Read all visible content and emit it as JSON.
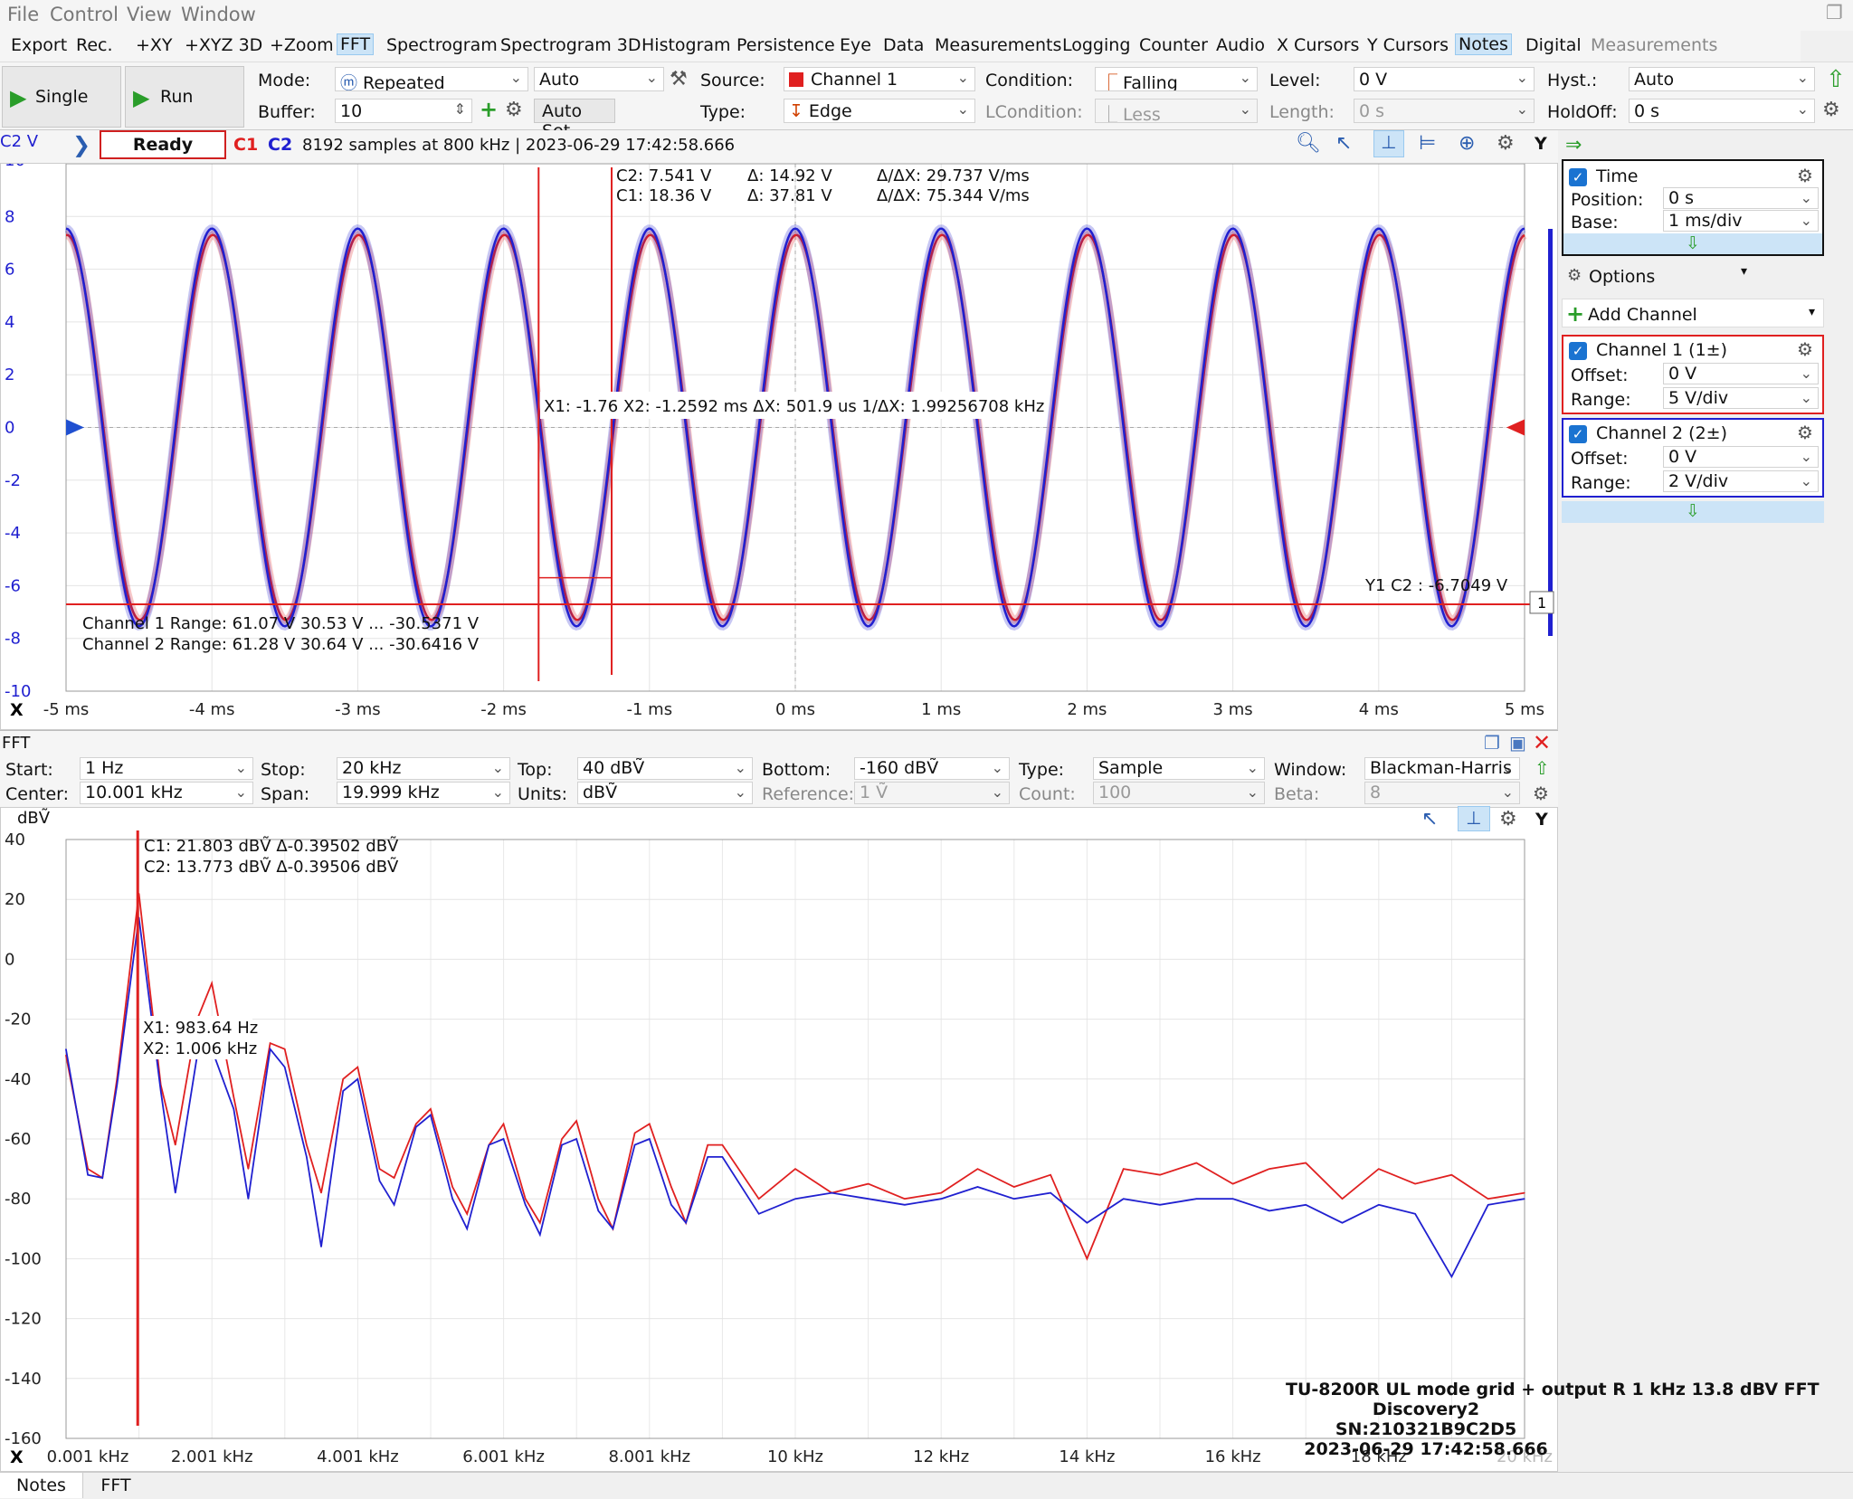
{
  "menu": [
    "File",
    "Control",
    "View",
    "Window"
  ],
  "toolbar": [
    "Export",
    "Rec.",
    "+XY",
    "+XYZ 3D",
    "+Zoom",
    "FFT",
    "Spectrogram",
    "Spectrogram 3D",
    "Histogram",
    "Persistence",
    "Eye",
    "Data",
    "Measurements",
    "Logging",
    "Counter",
    "Audio",
    "X Cursors",
    "Y Cursors",
    "Notes",
    "Digital",
    "Measurements"
  ],
  "controls": {
    "single": "Single",
    "run": "Run",
    "mode_label": "Mode:",
    "mode": "Repeated",
    "auto": "Auto",
    "buffer_label": "Buffer:",
    "buffer": "10",
    "autoset": "Auto Set",
    "source_label": "Source:",
    "source": "Channel 1",
    "type_label": "Type:",
    "type": "Edge",
    "condition_label": "Condition:",
    "condition": "Falling",
    "lcondition_label": "LCondition:",
    "lcondition": "Less",
    "level_label": "Level:",
    "level": "0 V",
    "length_label": "Length:",
    "length": "0 s",
    "hyst_label": "Hyst.:",
    "hyst": "Auto",
    "holdoff_label": "HoldOff:",
    "holdoff": "0 s"
  },
  "status": {
    "unit": "C2 V",
    "state": "Ready",
    "c1": "C1",
    "c2": "C2",
    "info": "8192 samples at 800 kHz | 2023-06-29 17:42:58.666",
    "y": "Y"
  },
  "scope": {
    "yticks": [
      "10",
      "8",
      "6",
      "4",
      "2",
      "0",
      "-2",
      "-4",
      "-6",
      "-8",
      "-10"
    ],
    "xticks": [
      "-5 ms",
      "-4 ms",
      "-3 ms",
      "-2 ms",
      "-1 ms",
      "0 ms",
      "1 ms",
      "2 ms",
      "3 ms",
      "4 ms",
      "5 ms"
    ],
    "x_axis_label": "X",
    "cursor_c2": "C2: 7.541 V",
    "cursor_c1": "C1: 18.36 V",
    "delta_c2": "Δ: 14.92 V",
    "delta_c1": "Δ: 37.81 V",
    "slope_c2": "Δ/ΔX: 29.737 V/ms",
    "slope_c1": "Δ/ΔX: 75.344 V/ms",
    "xcursors": "X1: -1.76 X2: -1.2592 ms   ΔX: 501.9 us     1/ΔX: 1.99256708 kHz",
    "ycursor": "Y1 C2 : -6.7049 V",
    "ch1_range": "Channel 1   Range: 61.07 V   30.53 V ... -30.5371 V",
    "ch2_range": "Channel 2   Range: 61.28 V   30.64 V ... -30.6416 V",
    "marker": "1"
  },
  "right_panel": {
    "time": "Time",
    "position_label": "Position:",
    "position": "0 s",
    "base_label": "Base:",
    "base": "1 ms/div",
    "options": "Options",
    "add_channel": "Add Channel",
    "ch1": "Channel 1 (1±)",
    "ch1_offset_label": "Offset:",
    "ch1_offset": "0 V",
    "ch1_range_label": "Range:",
    "ch1_range": "5 V/div",
    "ch2": "Channel 2 (2±)",
    "ch2_offset_label": "Offset:",
    "ch2_offset": "0 V",
    "ch2_range_label": "Range:",
    "ch2_range": "2 V/div"
  },
  "fft": {
    "title": "FFT",
    "start_label": "Start:",
    "start": "1 Hz",
    "stop_label": "Stop:",
    "stop": "20 kHz",
    "top_label": "Top:",
    "top": "40 dBṼ",
    "bottom_label": "Bottom:",
    "bottom": "-160 dBṼ",
    "type_label": "Type:",
    "type": "Sample",
    "window_label": "Window:",
    "window": "Blackman-Harris",
    "center_label": "Center:",
    "center": "10.001 kHz",
    "span_label": "Span:",
    "span": "19.999 kHz",
    "units_label": "Units:",
    "units": "dBṼ",
    "reference_label": "Reference:",
    "reference": "1 Ṽ",
    "count_label": "Count:",
    "count": "100",
    "beta_label": "Beta:",
    "beta": "8",
    "unit": "dBṼ",
    "y": "Y",
    "yticks": [
      "40",
      "20",
      "0",
      "-20",
      "-40",
      "-60",
      "-80",
      "-100",
      "-120",
      "-140",
      "-160"
    ],
    "xticks": [
      "0.001 kHz",
      "2.001 kHz",
      "4.001 kHz",
      "6.001 kHz",
      "8.001 kHz",
      "10 kHz",
      "12 kHz",
      "14 kHz",
      "16 kHz",
      "18 kHz",
      "20 kHz"
    ],
    "x_axis_label": "X",
    "c1": "C1: 21.803 dBṼ   Δ-0.39502 dBṼ",
    "c2": "C2: 13.773 dBṼ   Δ-0.39506 dBṼ",
    "x1": "X1: 983.64 Hz",
    "x2": "X2: 1.006 kHz",
    "note1": "TU-8200R UL mode grid + output R 1 kHz 13.8 dBV FFT",
    "note2": "Discovery2",
    "note3": "SN:210321B9C2D5",
    "note4": "2023-06-29 17:42:58.666"
  },
  "tabs": [
    "Notes",
    "FFT"
  ],
  "colors": {
    "ch1": "#e02020",
    "ch2": "#2020d0",
    "accent": "#1a73d1"
  },
  "chart_data": [
    {
      "type": "line",
      "title": "",
      "xlabel": "",
      "ylabel": "C2 V",
      "xlim": [
        -5,
        5
      ],
      "ylim": [
        -10,
        10
      ],
      "x_unit": "ms",
      "series": [
        {
          "name": "Channel 1",
          "frequency_khz": 1.0,
          "amplitude": 7.3,
          "offset": 0
        },
        {
          "name": "Channel 2",
          "frequency_khz": 1.0,
          "amplitude": 7.541,
          "offset": 0
        }
      ]
    },
    {
      "type": "line",
      "title": "",
      "xlabel": "",
      "ylabel": "dBṼ",
      "xlim": [
        0.001,
        20
      ],
      "ylim": [
        -160,
        40
      ],
      "x_unit": "kHz",
      "series": [
        {
          "name": "C1",
          "x": [
            0,
            0.3,
            0.5,
            0.7,
            1,
            1.3,
            1.5,
            1.8,
            2,
            2.3,
            2.5,
            2.8,
            3,
            3.3,
            3.5,
            3.8,
            4,
            4.3,
            4.5,
            4.8,
            5,
            5.3,
            5.5,
            5.8,
            6,
            6.3,
            6.5,
            6.8,
            7,
            7.3,
            7.5,
            7.8,
            8,
            8.3,
            8.5,
            8.8,
            9,
            9.5,
            10,
            10.5,
            11,
            11.5,
            12,
            12.5,
            13,
            13.5,
            14,
            14.5,
            15,
            15.5,
            16,
            16.5,
            17,
            17.5,
            18,
            18.5,
            19,
            19.5,
            20
          ],
          "y": [
            -32,
            -70,
            -73,
            -40,
            22,
            -42,
            -62,
            -20,
            -8,
            -46,
            -70,
            -28,
            -30,
            -62,
            -78,
            -40,
            -36,
            -70,
            -73,
            -55,
            -50,
            -76,
            -85,
            -62,
            -55,
            -80,
            -88,
            -60,
            -54,
            -80,
            -90,
            -58,
            -55,
            -76,
            -88,
            -62,
            -62,
            -80,
            -70,
            -78,
            -75,
            -80,
            -78,
            -70,
            -76,
            -72,
            -100,
            -70,
            -72,
            -68,
            -75,
            -70,
            -68,
            -80,
            -70,
            -75,
            -72,
            -80,
            -78
          ]
        },
        {
          "name": "C2",
          "x": [
            0,
            0.3,
            0.5,
            0.7,
            1,
            1.3,
            1.5,
            1.8,
            2,
            2.3,
            2.5,
            2.8,
            3,
            3.3,
            3.5,
            3.8,
            4,
            4.3,
            4.5,
            4.8,
            5,
            5.3,
            5.5,
            5.8,
            6,
            6.3,
            6.5,
            6.8,
            7,
            7.3,
            7.5,
            7.8,
            8,
            8.3,
            8.5,
            8.8,
            9,
            9.5,
            10,
            10.5,
            11,
            11.5,
            12,
            12.5,
            13,
            13.5,
            14,
            14.5,
            15,
            15.5,
            16,
            16.5,
            17,
            17.5,
            18,
            18.5,
            19,
            19.5,
            20
          ],
          "y": [
            -30,
            -72,
            -73,
            -42,
            14,
            -44,
            -78,
            -32,
            -30,
            -50,
            -80,
            -30,
            -36,
            -66,
            -96,
            -44,
            -40,
            -74,
            -82,
            -56,
            -52,
            -80,
            -90,
            -62,
            -60,
            -82,
            -92,
            -62,
            -60,
            -84,
            -90,
            -62,
            -60,
            -82,
            -88,
            -66,
            -66,
            -85,
            -80,
            -78,
            -80,
            -82,
            -80,
            -76,
            -80,
            -78,
            -88,
            -80,
            -82,
            -80,
            -80,
            -84,
            -82,
            -88,
            -82,
            -85,
            -106,
            -82,
            -80
          ]
        }
      ]
    }
  ]
}
